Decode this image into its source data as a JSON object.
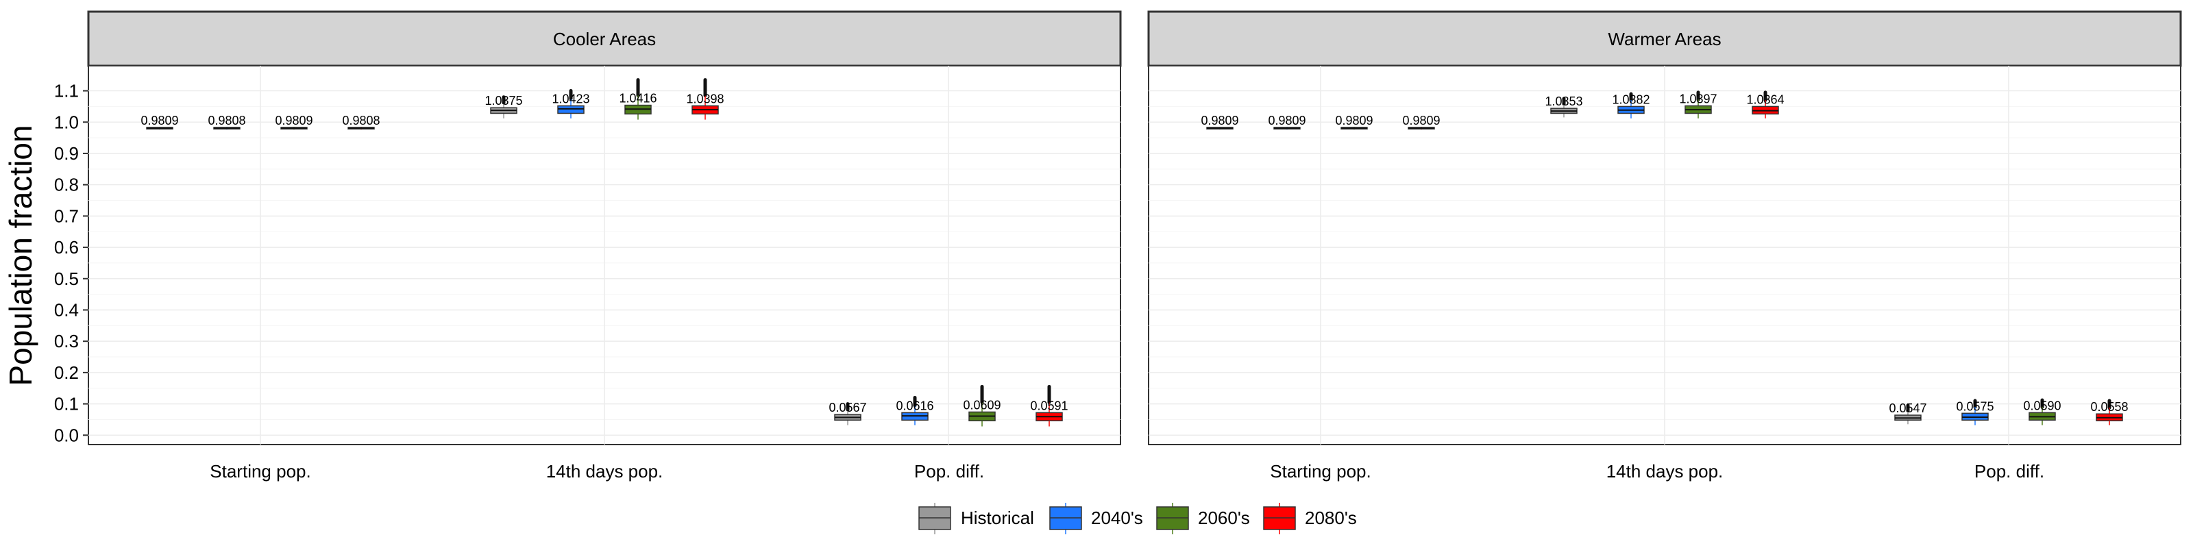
{
  "chart_data": {
    "type": "boxplot",
    "ylabel": "Population fraction",
    "ylim": [
      -0.03,
      1.18
    ],
    "yticks": [
      0.0,
      0.1,
      0.2,
      0.3,
      0.4,
      0.5,
      0.6,
      0.7,
      0.8,
      0.9,
      1.0,
      1.1
    ],
    "ytick_labels": [
      "0.0",
      "0.1",
      "0.2",
      "0.3",
      "0.4",
      "0.5",
      "0.6",
      "0.7",
      "0.8",
      "0.9",
      "1.0",
      "1.1"
    ],
    "categories": [
      "Starting pop.",
      "14th days pop.",
      "Pop. diff."
    ],
    "series": [
      {
        "name": "Historical",
        "color": "#999999"
      },
      {
        "name": "2040's",
        "color": "#1f78ff"
      },
      {
        "name": "2060's",
        "color": "#4f7f1a"
      },
      {
        "name": "2080's",
        "color": "#ff0000"
      }
    ],
    "panels": [
      {
        "title": "Cooler Areas",
        "groups": [
          {
            "boxes": [
              {
                "median": 0.9809,
                "q1": 0.978,
                "q3": 0.983,
                "min": 0.976,
                "max": 0.985,
                "label": "0.9809"
              },
              {
                "median": 0.9808,
                "q1": 0.978,
                "q3": 0.983,
                "min": 0.976,
                "max": 0.985,
                "label": "0.9808"
              },
              {
                "median": 0.9809,
                "q1": 0.978,
                "q3": 0.983,
                "min": 0.976,
                "max": 0.985,
                "label": "0.9809"
              },
              {
                "median": 0.9808,
                "q1": 0.978,
                "q3": 0.983,
                "min": 0.976,
                "max": 0.985,
                "label": "0.9808"
              }
            ]
          },
          {
            "boxes": [
              {
                "median": 1.0375,
                "q1": 1.028,
                "q3": 1.046,
                "min": 1.012,
                "max": 1.062,
                "outlier_max": 1.08,
                "label": "1.0375"
              },
              {
                "median": 1.0423,
                "q1": 1.028,
                "q3": 1.052,
                "min": 1.012,
                "max": 1.075,
                "outlier_max": 1.1,
                "label": "1.0423"
              },
              {
                "median": 1.0416,
                "q1": 1.026,
                "q3": 1.054,
                "min": 1.008,
                "max": 1.085,
                "outlier_max": 1.135,
                "label": "1.0416"
              },
              {
                "median": 1.0398,
                "q1": 1.026,
                "q3": 1.052,
                "min": 1.008,
                "max": 1.085,
                "outlier_max": 1.135,
                "label": "1.0398"
              }
            ]
          },
          {
            "boxes": [
              {
                "median": 0.0567,
                "q1": 0.048,
                "q3": 0.066,
                "min": 0.032,
                "max": 0.082,
                "outlier_max": 0.1,
                "label": "0.0567"
              },
              {
                "median": 0.0616,
                "q1": 0.048,
                "q3": 0.072,
                "min": 0.032,
                "max": 0.095,
                "outlier_max": 0.12,
                "label": "0.0616"
              },
              {
                "median": 0.0609,
                "q1": 0.046,
                "q3": 0.074,
                "min": 0.028,
                "max": 0.105,
                "outlier_max": 0.155,
                "label": "0.0609"
              },
              {
                "median": 0.0591,
                "q1": 0.046,
                "q3": 0.072,
                "min": 0.028,
                "max": 0.105,
                "outlier_max": 0.155,
                "label": "0.0591"
              }
            ]
          }
        ]
      },
      {
        "title": "Warmer Areas",
        "groups": [
          {
            "boxes": [
              {
                "median": 0.9809,
                "q1": 0.978,
                "q3": 0.983,
                "min": 0.976,
                "max": 0.985,
                "label": "0.9809"
              },
              {
                "median": 0.9809,
                "q1": 0.978,
                "q3": 0.983,
                "min": 0.976,
                "max": 0.985,
                "label": "0.9809"
              },
              {
                "median": 0.9809,
                "q1": 0.978,
                "q3": 0.983,
                "min": 0.976,
                "max": 0.985,
                "label": "0.9809"
              },
              {
                "median": 0.9809,
                "q1": 0.978,
                "q3": 0.983,
                "min": 0.976,
                "max": 0.985,
                "label": "0.9809"
              }
            ]
          },
          {
            "boxes": [
              {
                "median": 1.0353,
                "q1": 1.028,
                "q3": 1.044,
                "min": 1.015,
                "max": 1.058,
                "outlier_max": 1.075,
                "label": "1.0353"
              },
              {
                "median": 1.0382,
                "q1": 1.028,
                "q3": 1.05,
                "min": 1.012,
                "max": 1.07,
                "outlier_max": 1.09,
                "label": "1.0382"
              },
              {
                "median": 1.0397,
                "q1": 1.028,
                "q3": 1.052,
                "min": 1.012,
                "max": 1.072,
                "outlier_max": 1.095,
                "label": "1.0397"
              },
              {
                "median": 1.0364,
                "q1": 1.026,
                "q3": 1.05,
                "min": 1.012,
                "max": 1.07,
                "outlier_max": 1.095,
                "label": "1.0364"
              }
            ]
          },
          {
            "boxes": [
              {
                "median": 0.0547,
                "q1": 0.048,
                "q3": 0.064,
                "min": 0.035,
                "max": 0.078,
                "outlier_max": 0.095,
                "label": "0.0547"
              },
              {
                "median": 0.0575,
                "q1": 0.048,
                "q3": 0.07,
                "min": 0.032,
                "max": 0.09,
                "outlier_max": 0.11,
                "label": "0.0575"
              },
              {
                "median": 0.059,
                "q1": 0.048,
                "q3": 0.072,
                "min": 0.032,
                "max": 0.09,
                "outlier_max": 0.112,
                "label": "0.0590"
              },
              {
                "median": 0.0558,
                "q1": 0.046,
                "q3": 0.068,
                "min": 0.032,
                "max": 0.088,
                "outlier_max": 0.11,
                "label": "0.0558"
              }
            ]
          }
        ]
      }
    ]
  }
}
